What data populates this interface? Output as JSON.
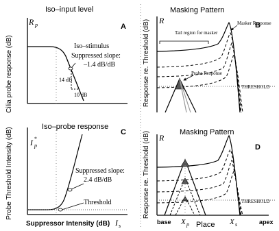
{
  "panelA": {
    "title": "Iso–input level",
    "letter": "A",
    "ylabel": "Cilia probe response (dB)",
    "yaxis_symbol": "R",
    "yaxis_sub": "p",
    "annotation_line1": "Iso–stimulus",
    "annotation_line2": "Suppressed slope:",
    "annotation_line3": "–1.4 dB/dB",
    "dim_vertical": "14 dB",
    "dim_horizontal": "10 dB"
  },
  "panelB": {
    "title": "Masking Pattern",
    "letter": "B",
    "ylabel": "Response re. Threshold (dB)",
    "yaxis_symbol": "R",
    "tail_label": "Tail region for masker",
    "masker_label": "Masker Response",
    "probe_label": "Probe Response",
    "threshold_label": "THRESHOLD"
  },
  "panelC": {
    "title": "Iso–probe response",
    "letter": "C",
    "ylabel": "Probe Threshold Intensity (dB)",
    "yaxis_symbol": "I",
    "yaxis_sub": "p",
    "yaxis_sup": "*",
    "xlabel": "Suppressor Intensity (dB)",
    "xaxis_symbol": "I",
    "xaxis_sub": "s",
    "slope_line1": "Suppressed slope:",
    "slope_line2": "2.4 dB/dB",
    "threshold_label": "Threshold"
  },
  "panelD": {
    "title": "Masking Pattern",
    "letter": "D",
    "ylabel": "Response re. Threshold (dB)",
    "yaxis_symbol": "R",
    "threshold_label": "THRESHOLD",
    "xlabel": "Place",
    "base_label": "base",
    "apex_label": "apex",
    "xp_symbol": "X",
    "xp_sub": "p",
    "xs_symbol": "X",
    "xs_sub": "s"
  }
}
